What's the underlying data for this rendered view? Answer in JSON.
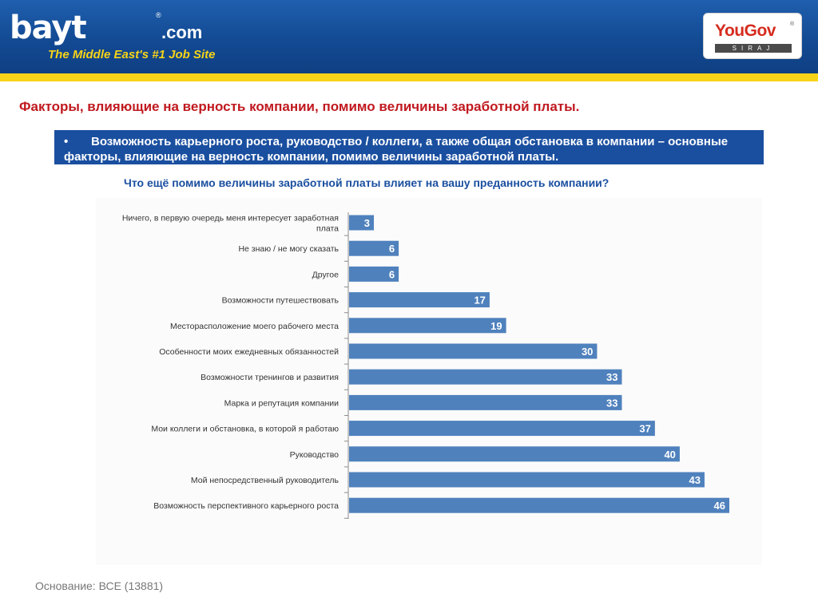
{
  "header": {
    "brand": "bayt",
    "brand_domain": ".com",
    "brand_reg": "®",
    "tagline": "The Middle East's #1 Job Site",
    "partner_name": "YouGov",
    "partner_reg": "®",
    "partner_sub": "SIRAJ",
    "colors": {
      "header_blue": "#134a93",
      "accent_yellow": "#f7d417",
      "partner_red": "#d52b1e"
    }
  },
  "title": "Факторы, влияющие на верность компании, помимо величины заработной платы.",
  "banner": {
    "bullet": "•",
    "text": "Возможность карьерного роста, руководство / коллеги, а также общая обстановка в компании – основные факторы, влияющие на верность компании, помимо величины заработной платы."
  },
  "question": "Что ещё помимо величины заработной платы влияет на вашу преданность компании?",
  "footnote": "Основание: ВСЕ (13881)",
  "chart_data": {
    "type": "bar",
    "orientation": "horizontal",
    "title": "",
    "xlabel": "",
    "ylabel": "",
    "categories": [
      [
        "Ничего, в первую очередь меня интересует заработная",
        "плата"
      ],
      [
        "Не знаю / не могу сказать"
      ],
      [
        "Другое"
      ],
      [
        "Возможности путешествовать"
      ],
      [
        "Месторасположение моего рабочего места"
      ],
      [
        "Особенности моих ежедневных обязанностей"
      ],
      [
        "Возможности тренингов и развития"
      ],
      [
        "Марка и репутация компании"
      ],
      [
        "Мои коллеги и обстановка, в которой я работаю"
      ],
      [
        "Руководство"
      ],
      [
        "Мой непосредственный руководитель"
      ],
      [
        "Возможность перспективного карьерного роста"
      ]
    ],
    "values": [
      3,
      6,
      6,
      17,
      19,
      30,
      33,
      33,
      37,
      40,
      43,
      46
    ],
    "xlim": [
      0,
      46
    ],
    "grid": false,
    "legend": "none",
    "bar_color": "#4f81bd"
  }
}
